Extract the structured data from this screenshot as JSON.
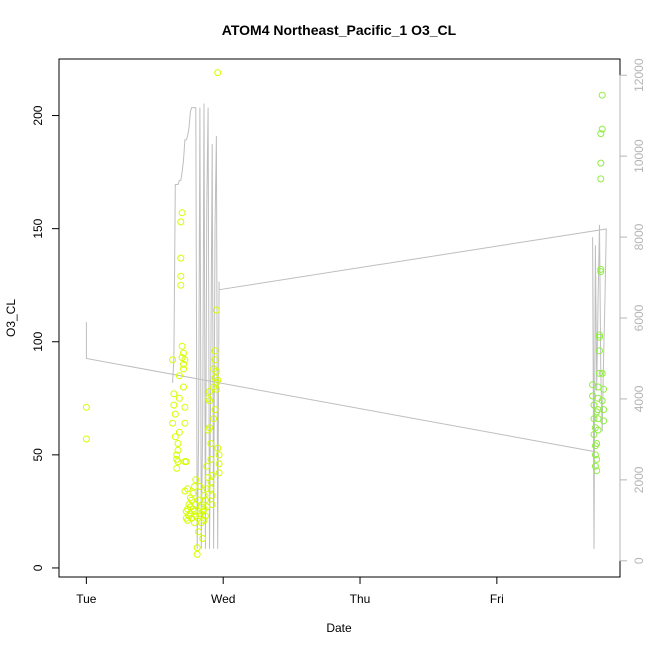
{
  "chart_data": {
    "type": "scatter",
    "title": "ATOM4 Northeast_Pacific_1 O3_CL",
    "xlabel": "Date",
    "ylabel": "O3_CL",
    "x_ticks": [
      {
        "label": "Tue",
        "day": 0
      },
      {
        "label": "Wed",
        "day": 1
      },
      {
        "label": "Thu",
        "day": 2
      },
      {
        "label": "Fri",
        "day": 3
      }
    ],
    "xlim": [
      -0.2,
      3.9
    ],
    "ylim": [
      -4,
      225
    ],
    "y_ticks": [
      0,
      50,
      100,
      150,
      200
    ],
    "y2lim": [
      -400,
      12400
    ],
    "y2_ticks": [
      0,
      2000,
      4000,
      6000,
      8000,
      10000,
      12000
    ],
    "colors": {
      "points_a": "#d4ff00",
      "points_b": "#90ee40",
      "line": "#bebebe",
      "axis": "#000000",
      "axis_right": "#b4b4b4"
    },
    "series": [
      {
        "type": "scatter",
        "axis": "left",
        "points": [
          [
            0.0,
            71
          ],
          [
            0.0,
            57
          ],
          [
            0.63,
            92
          ],
          [
            0.63,
            64
          ],
          [
            0.64,
            77
          ],
          [
            0.64,
            72
          ],
          [
            0.65,
            68
          ],
          [
            0.65,
            58
          ],
          [
            0.66,
            48
          ],
          [
            0.66,
            44
          ],
          [
            0.66,
            50
          ],
          [
            0.67,
            47
          ],
          [
            0.67,
            52
          ],
          [
            0.67,
            55
          ],
          [
            0.68,
            60
          ],
          [
            0.68,
            85
          ],
          [
            0.68,
            75
          ],
          [
            0.69,
            129
          ],
          [
            0.69,
            125
          ],
          [
            0.69,
            137
          ],
          [
            0.69,
            153
          ],
          [
            0.7,
            157
          ],
          [
            0.7,
            93
          ],
          [
            0.7,
            98
          ],
          [
            0.71,
            95
          ],
          [
            0.71,
            90
          ],
          [
            0.71,
            80
          ],
          [
            0.72,
            71
          ],
          [
            0.72,
            64
          ],
          [
            0.72,
            47
          ],
          [
            0.72,
            34
          ],
          [
            0.73,
            22
          ],
          [
            0.73,
            25
          ],
          [
            0.74,
            26
          ],
          [
            0.74,
            21
          ],
          [
            0.75,
            23
          ],
          [
            0.75,
            28
          ],
          [
            0.76,
            24
          ],
          [
            0.76,
            27
          ],
          [
            0.77,
            22
          ],
          [
            0.77,
            30
          ],
          [
            0.78,
            26
          ],
          [
            0.78,
            33
          ],
          [
            0.79,
            25
          ],
          [
            0.79,
            36
          ],
          [
            0.8,
            28
          ],
          [
            0.8,
            39
          ],
          [
            0.8,
            23
          ],
          [
            0.81,
            9
          ],
          [
            0.81,
            6
          ],
          [
            0.82,
            16
          ],
          [
            0.82,
            30
          ],
          [
            0.83,
            24
          ],
          [
            0.83,
            36
          ],
          [
            0.84,
            27
          ],
          [
            0.84,
            20
          ],
          [
            0.85,
            13
          ],
          [
            0.85,
            25
          ],
          [
            0.86,
            21
          ],
          [
            0.86,
            32
          ],
          [
            0.87,
            23
          ],
          [
            0.87,
            30
          ],
          [
            0.88,
            27
          ],
          [
            0.88,
            45
          ],
          [
            0.89,
            40
          ],
          [
            0.89,
            61
          ],
          [
            0.89,
            75
          ],
          [
            0.9,
            78
          ],
          [
            0.9,
            74
          ],
          [
            0.9,
            62
          ],
          [
            0.91,
            48
          ],
          [
            0.91,
            55
          ],
          [
            0.91,
            35
          ],
          [
            0.92,
            32
          ],
          [
            0.92,
            28
          ],
          [
            0.92,
            41
          ],
          [
            0.93,
            66
          ],
          [
            0.93,
            80
          ],
          [
            0.93,
            88
          ],
          [
            0.94,
            96
          ],
          [
            0.94,
            92
          ],
          [
            0.94,
            84
          ],
          [
            0.95,
            82
          ],
          [
            0.95,
            79
          ],
          [
            0.95,
            114
          ],
          [
            0.96,
            219
          ],
          [
            0.96,
            83
          ],
          [
            0.96,
            53
          ],
          [
            0.97,
            46
          ],
          [
            0.97,
            42
          ],
          [
            0.97,
            50
          ],
          [
            0.71,
            88
          ],
          [
            0.72,
            92
          ],
          [
            0.73,
            47
          ],
          [
            0.74,
            35
          ],
          [
            0.76,
            31
          ],
          [
            0.79,
            20
          ],
          [
            0.83,
            23
          ],
          [
            0.86,
            26
          ],
          [
            0.88,
            35
          ],
          [
            0.91,
            38
          ],
          [
            0.94,
            70
          ],
          [
            0.95,
            87
          ]
        ]
      },
      {
        "type": "scatter",
        "axis": "left",
        "points": [
          [
            3.7,
            81
          ],
          [
            3.7,
            76
          ],
          [
            3.71,
            72
          ],
          [
            3.71,
            66
          ],
          [
            3.71,
            59
          ],
          [
            3.72,
            54
          ],
          [
            3.72,
            50
          ],
          [
            3.72,
            45
          ],
          [
            3.73,
            43
          ],
          [
            3.73,
            48
          ],
          [
            3.73,
            55
          ],
          [
            3.74,
            61
          ],
          [
            3.74,
            70
          ],
          [
            3.74,
            75
          ],
          [
            3.74,
            80
          ],
          [
            3.75,
            86
          ],
          [
            3.75,
            96
          ],
          [
            3.75,
            102
          ],
          [
            3.75,
            103
          ],
          [
            3.76,
            132
          ],
          [
            3.76,
            131
          ],
          [
            3.76,
            172
          ],
          [
            3.76,
            179
          ],
          [
            3.76,
            192
          ],
          [
            3.77,
            194
          ],
          [
            3.77,
            209
          ],
          [
            3.77,
            86
          ],
          [
            3.77,
            74
          ],
          [
            3.78,
            70
          ],
          [
            3.78,
            65
          ],
          [
            3.78,
            79
          ],
          [
            3.72,
            62
          ],
          [
            3.73,
            69
          ],
          [
            3.74,
            66
          ]
        ]
      },
      {
        "type": "line",
        "axis": "right",
        "points": [
          [
            0.0,
            5900
          ],
          [
            0.0,
            5000
          ],
          [
            3.71,
            2700
          ],
          [
            3.7,
            8000
          ],
          [
            3.71,
            300
          ],
          [
            3.72,
            7800
          ],
          [
            3.73,
            4200
          ],
          [
            3.74,
            6500
          ],
          [
            3.75,
            8300
          ],
          [
            3.76,
            4600
          ],
          [
            3.77,
            3200
          ],
          [
            3.78,
            5000
          ],
          [
            3.79,
            6400
          ],
          [
            3.8,
            8200
          ],
          [
            0.97,
            6700
          ],
          [
            0.97,
            6900
          ],
          [
            0.96,
            300
          ],
          [
            0.95,
            10500
          ],
          [
            0.94,
            8200
          ],
          [
            0.93,
            300
          ],
          [
            0.92,
            10300
          ],
          [
            0.91,
            5200
          ],
          [
            0.9,
            300
          ],
          [
            0.89,
            11200
          ],
          [
            0.88,
            8800
          ],
          [
            0.87,
            300
          ],
          [
            0.86,
            11300
          ],
          [
            0.85,
            3500
          ],
          [
            0.84,
            300
          ],
          [
            0.83,
            11200
          ],
          [
            0.82,
            3000
          ],
          [
            0.81,
            300
          ],
          [
            0.8,
            11200
          ],
          [
            0.79,
            11200
          ],
          [
            0.78,
            11200
          ],
          [
            0.77,
            11200
          ],
          [
            0.76,
            11100
          ],
          [
            0.75,
            10700
          ],
          [
            0.74,
            10500
          ],
          [
            0.73,
            10400
          ],
          [
            0.72,
            10400
          ],
          [
            0.71,
            9900
          ],
          [
            0.7,
            9600
          ],
          [
            0.69,
            9400
          ],
          [
            0.68,
            9400
          ],
          [
            0.67,
            9300
          ],
          [
            0.66,
            9300
          ],
          [
            0.65,
            9300
          ],
          [
            0.64,
            5000
          ],
          [
            0.63,
            4400
          ]
        ]
      }
    ]
  }
}
